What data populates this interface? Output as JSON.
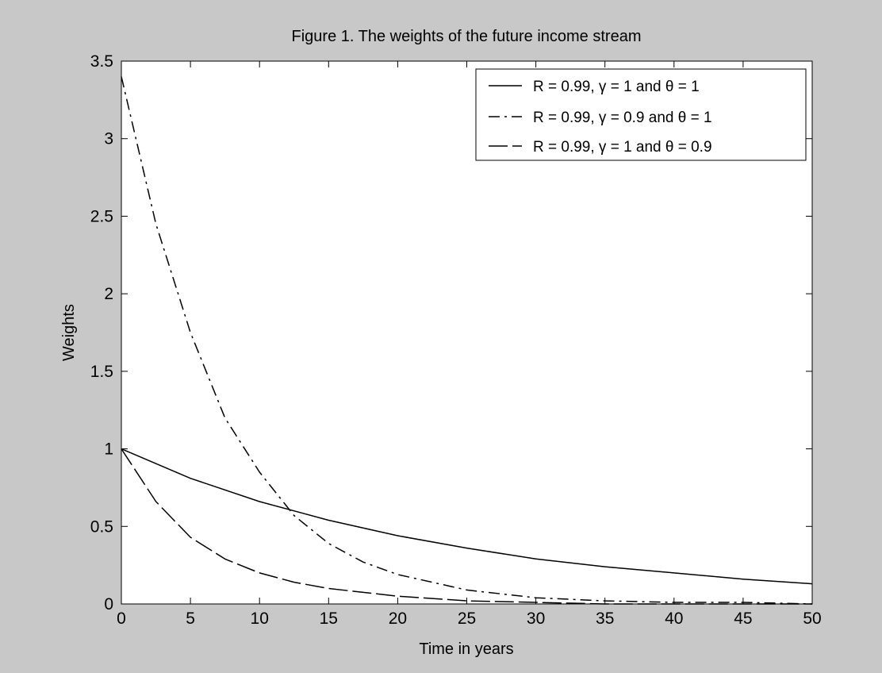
{
  "chart_data": {
    "type": "line",
    "title": "Figure 1. The weights of the future income stream",
    "xlabel": "Time in years",
    "ylabel": "Weights",
    "xlim": [
      0,
      50
    ],
    "ylim": [
      0,
      3.5
    ],
    "xticks": [
      0,
      5,
      10,
      15,
      20,
      25,
      30,
      35,
      40,
      45,
      50
    ],
    "xtick_labels": [
      "0",
      "5",
      "10",
      "15",
      "20",
      "25",
      "30",
      "35",
      "40",
      "45",
      "50"
    ],
    "yticks": [
      0,
      0.5,
      1,
      1.5,
      2,
      2.5,
      3,
      3.5
    ],
    "ytick_labels": [
      "0",
      "0.5",
      "1",
      "1.5",
      "2",
      "2.5",
      "3",
      "3.5"
    ],
    "grid": false,
    "legend_position": "top-right",
    "background_color": "#c8c8c8",
    "axes_color": "#ffffff",
    "line_color": "#000000",
    "series": [
      {
        "name": "R = 0.99, γ = 1 and θ = 1",
        "linestyle": "solid",
        "x": [
          0,
          5,
          10,
          15,
          20,
          25,
          30,
          35,
          40,
          45,
          50
        ],
        "values": [
          1.0,
          0.81,
          0.66,
          0.54,
          0.44,
          0.36,
          0.29,
          0.24,
          0.2,
          0.16,
          0.13
        ]
      },
      {
        "name": "R = 0.99, γ = 0.9 and θ = 1",
        "linestyle": "dash-dot",
        "x": [
          0,
          2.5,
          5,
          7.5,
          10,
          12.5,
          15,
          17.5,
          20,
          25,
          30,
          35,
          40,
          45,
          50
        ],
        "values": [
          3.4,
          2.45,
          1.75,
          1.2,
          0.85,
          0.57,
          0.39,
          0.27,
          0.19,
          0.09,
          0.04,
          0.02,
          0.01,
          0.01,
          0.0
        ]
      },
      {
        "name": "R = 0.99, γ = 1 and θ = 0.9",
        "linestyle": "long-dash",
        "x": [
          0,
          2.5,
          5,
          7.5,
          10,
          12.5,
          15,
          20,
          25,
          30,
          35,
          40,
          45,
          50
        ],
        "values": [
          1.0,
          0.66,
          0.43,
          0.29,
          0.2,
          0.14,
          0.1,
          0.05,
          0.02,
          0.01,
          0.0,
          0.0,
          0.0,
          0.0
        ]
      }
    ]
  }
}
